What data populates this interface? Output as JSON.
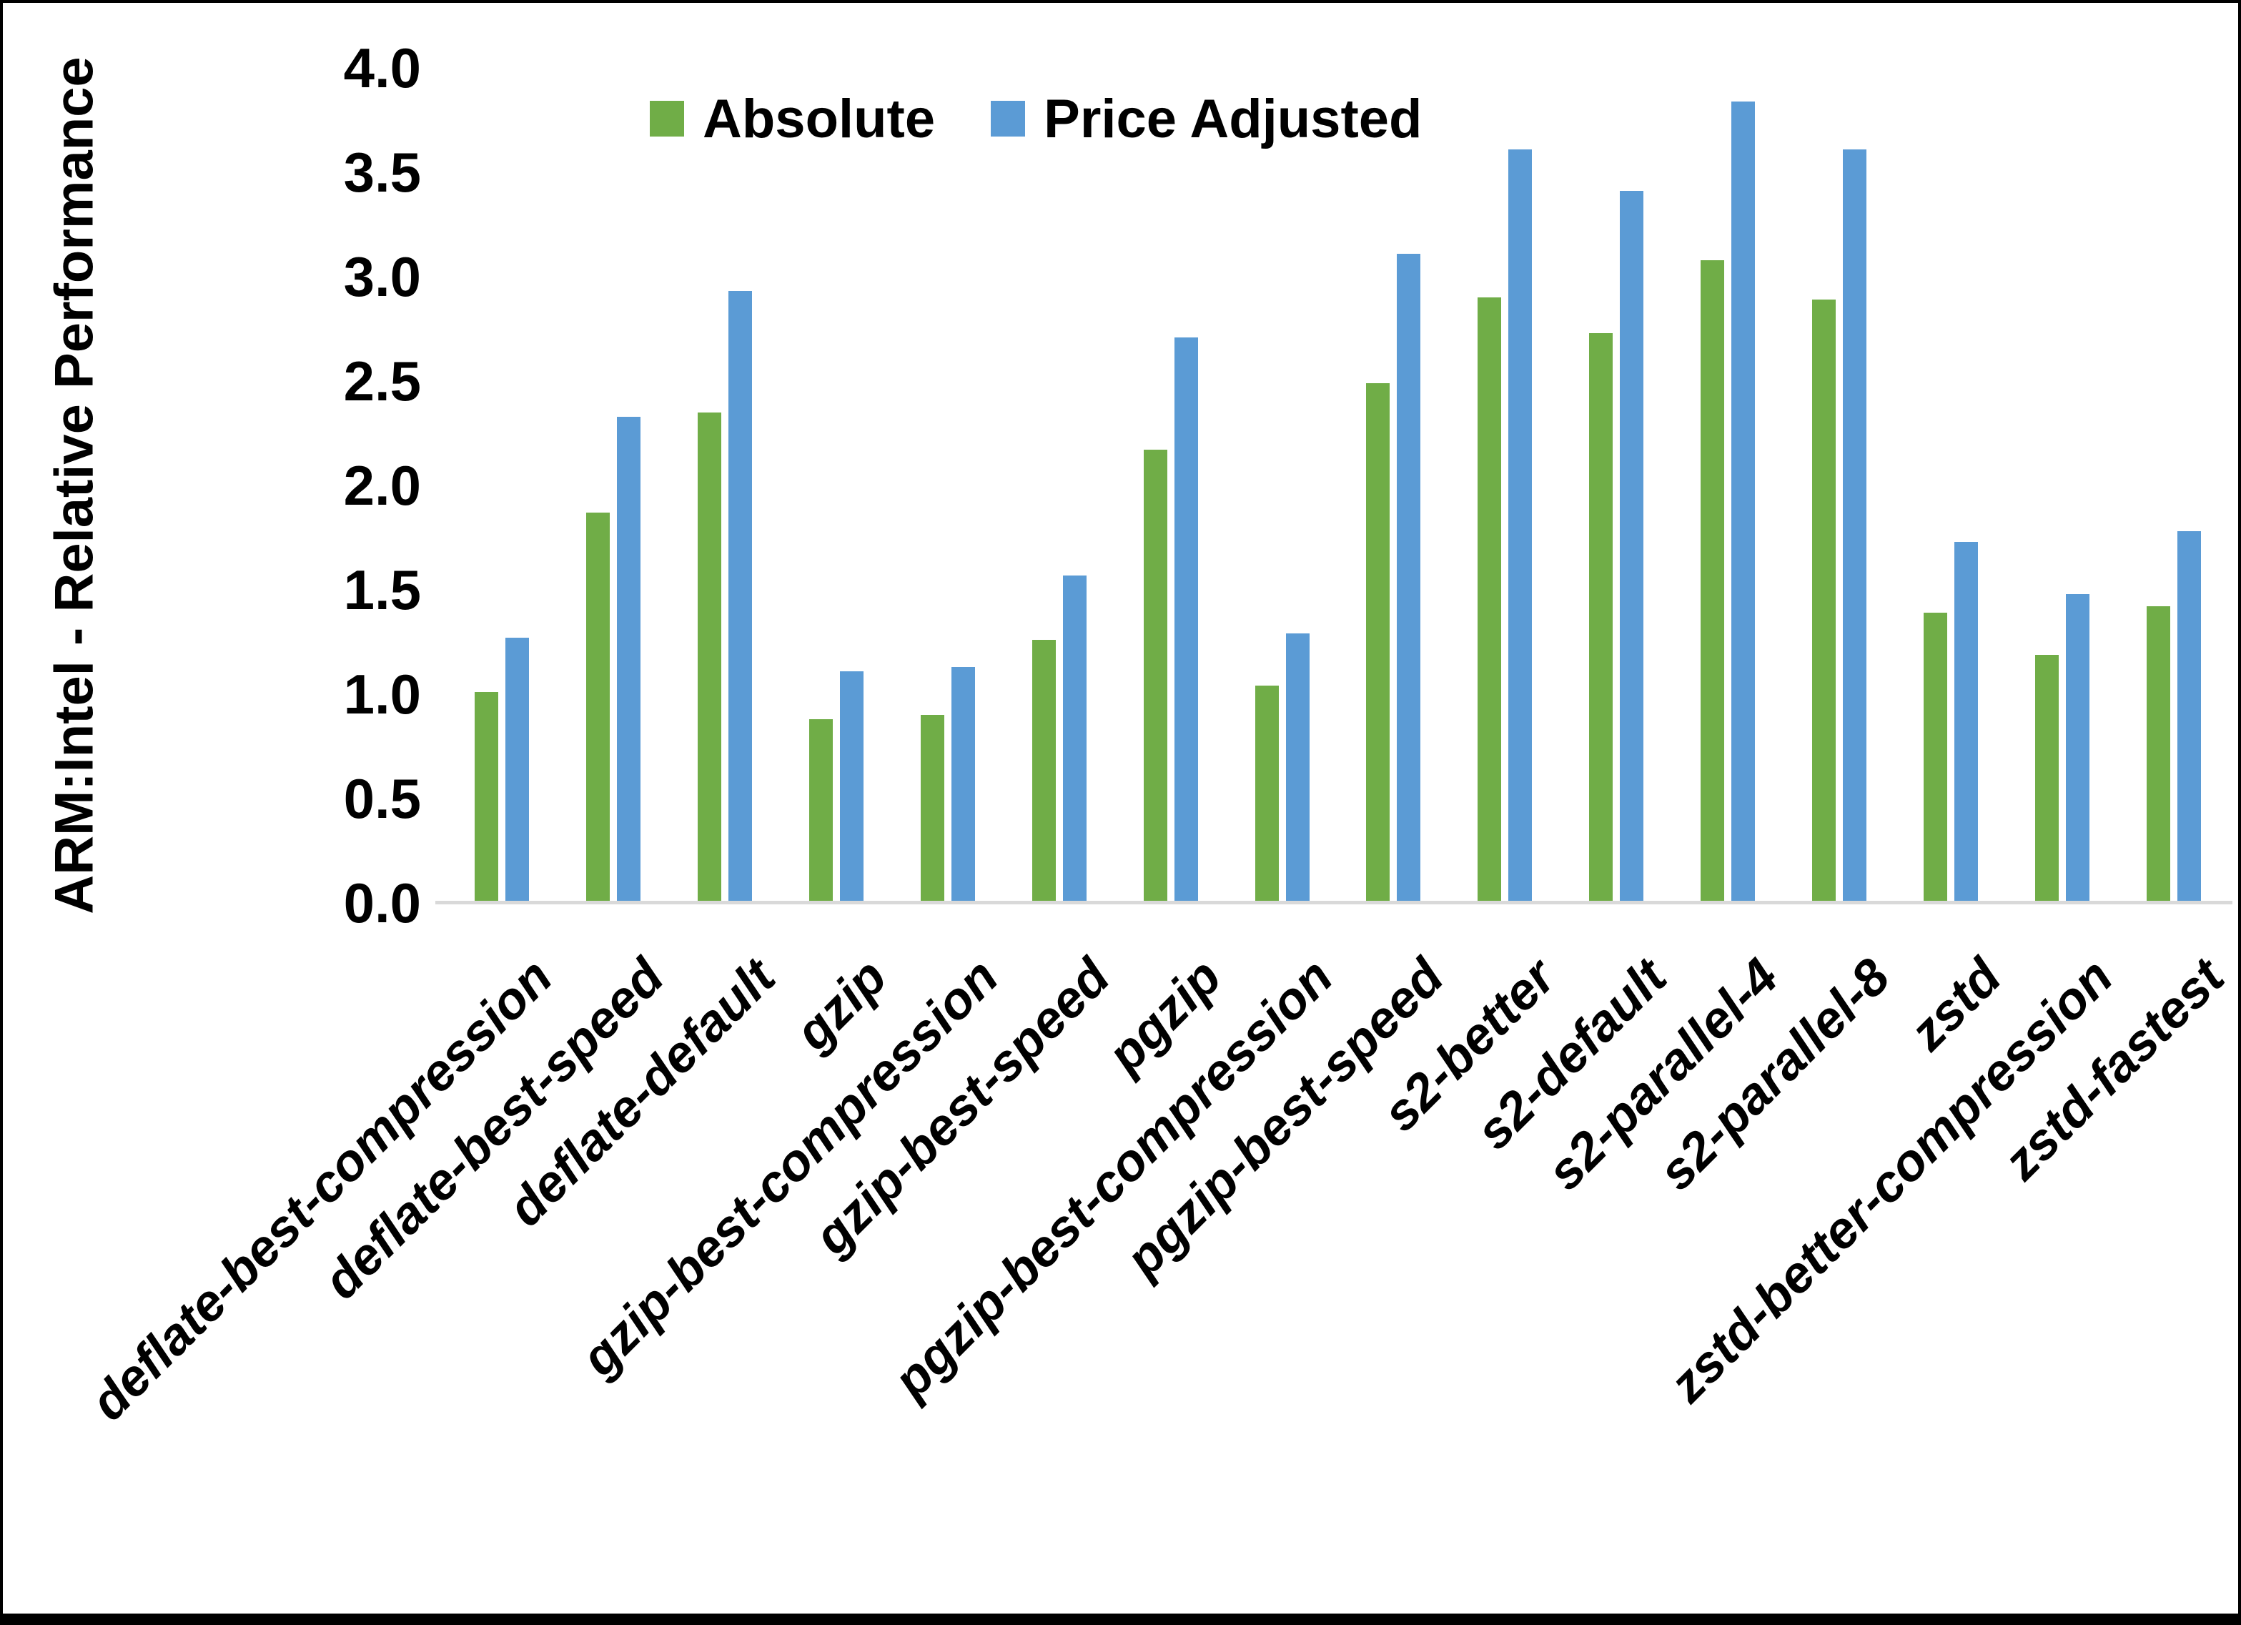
{
  "chart_data": {
    "type": "bar",
    "title": "",
    "ylabel": "ARM:Intel - Relative Performance",
    "xlabel": "",
    "categories": [
      "deflate-best-compression",
      "deflate-best-speed",
      "deflate-default",
      "gzip",
      "gzip-best-compression",
      "gzip-best-speed",
      "pgzip",
      "pgzip-best-compression",
      "pgzip-best-speed",
      "s2-better",
      "s2-default",
      "s2-parallel-4",
      "s2-parallel-8",
      "zstd",
      "zstd-better-compression",
      "zstd-fastest"
    ],
    "series": [
      {
        "name": "Absolute",
        "color": "#70AD47",
        "values": [
          1.01,
          1.87,
          2.35,
          0.88,
          0.9,
          1.26,
          2.17,
          1.04,
          2.49,
          2.9,
          2.73,
          3.08,
          2.89,
          1.39,
          1.19,
          1.42
        ]
      },
      {
        "name": "Price Adjusted",
        "color": "#5B9BD5",
        "values": [
          1.27,
          2.33,
          2.93,
          1.11,
          1.13,
          1.57,
          2.71,
          1.29,
          3.11,
          3.61,
          3.41,
          3.84,
          3.61,
          1.73,
          1.48,
          1.78
        ]
      }
    ],
    "ylim": [
      0.0,
      4.0
    ],
    "ytick_step": 0.5,
    "ytick_labels": [
      "0.0",
      "0.5",
      "1.0",
      "1.5",
      "2.0",
      "2.5",
      "3.0",
      "3.5",
      "4.0"
    ],
    "grid": false,
    "legend_position": "top"
  },
  "colors": {
    "axis_line": "#D9D9D9",
    "text": "#000000",
    "frame_border": "#000000",
    "background": "#FFFFFF"
  }
}
